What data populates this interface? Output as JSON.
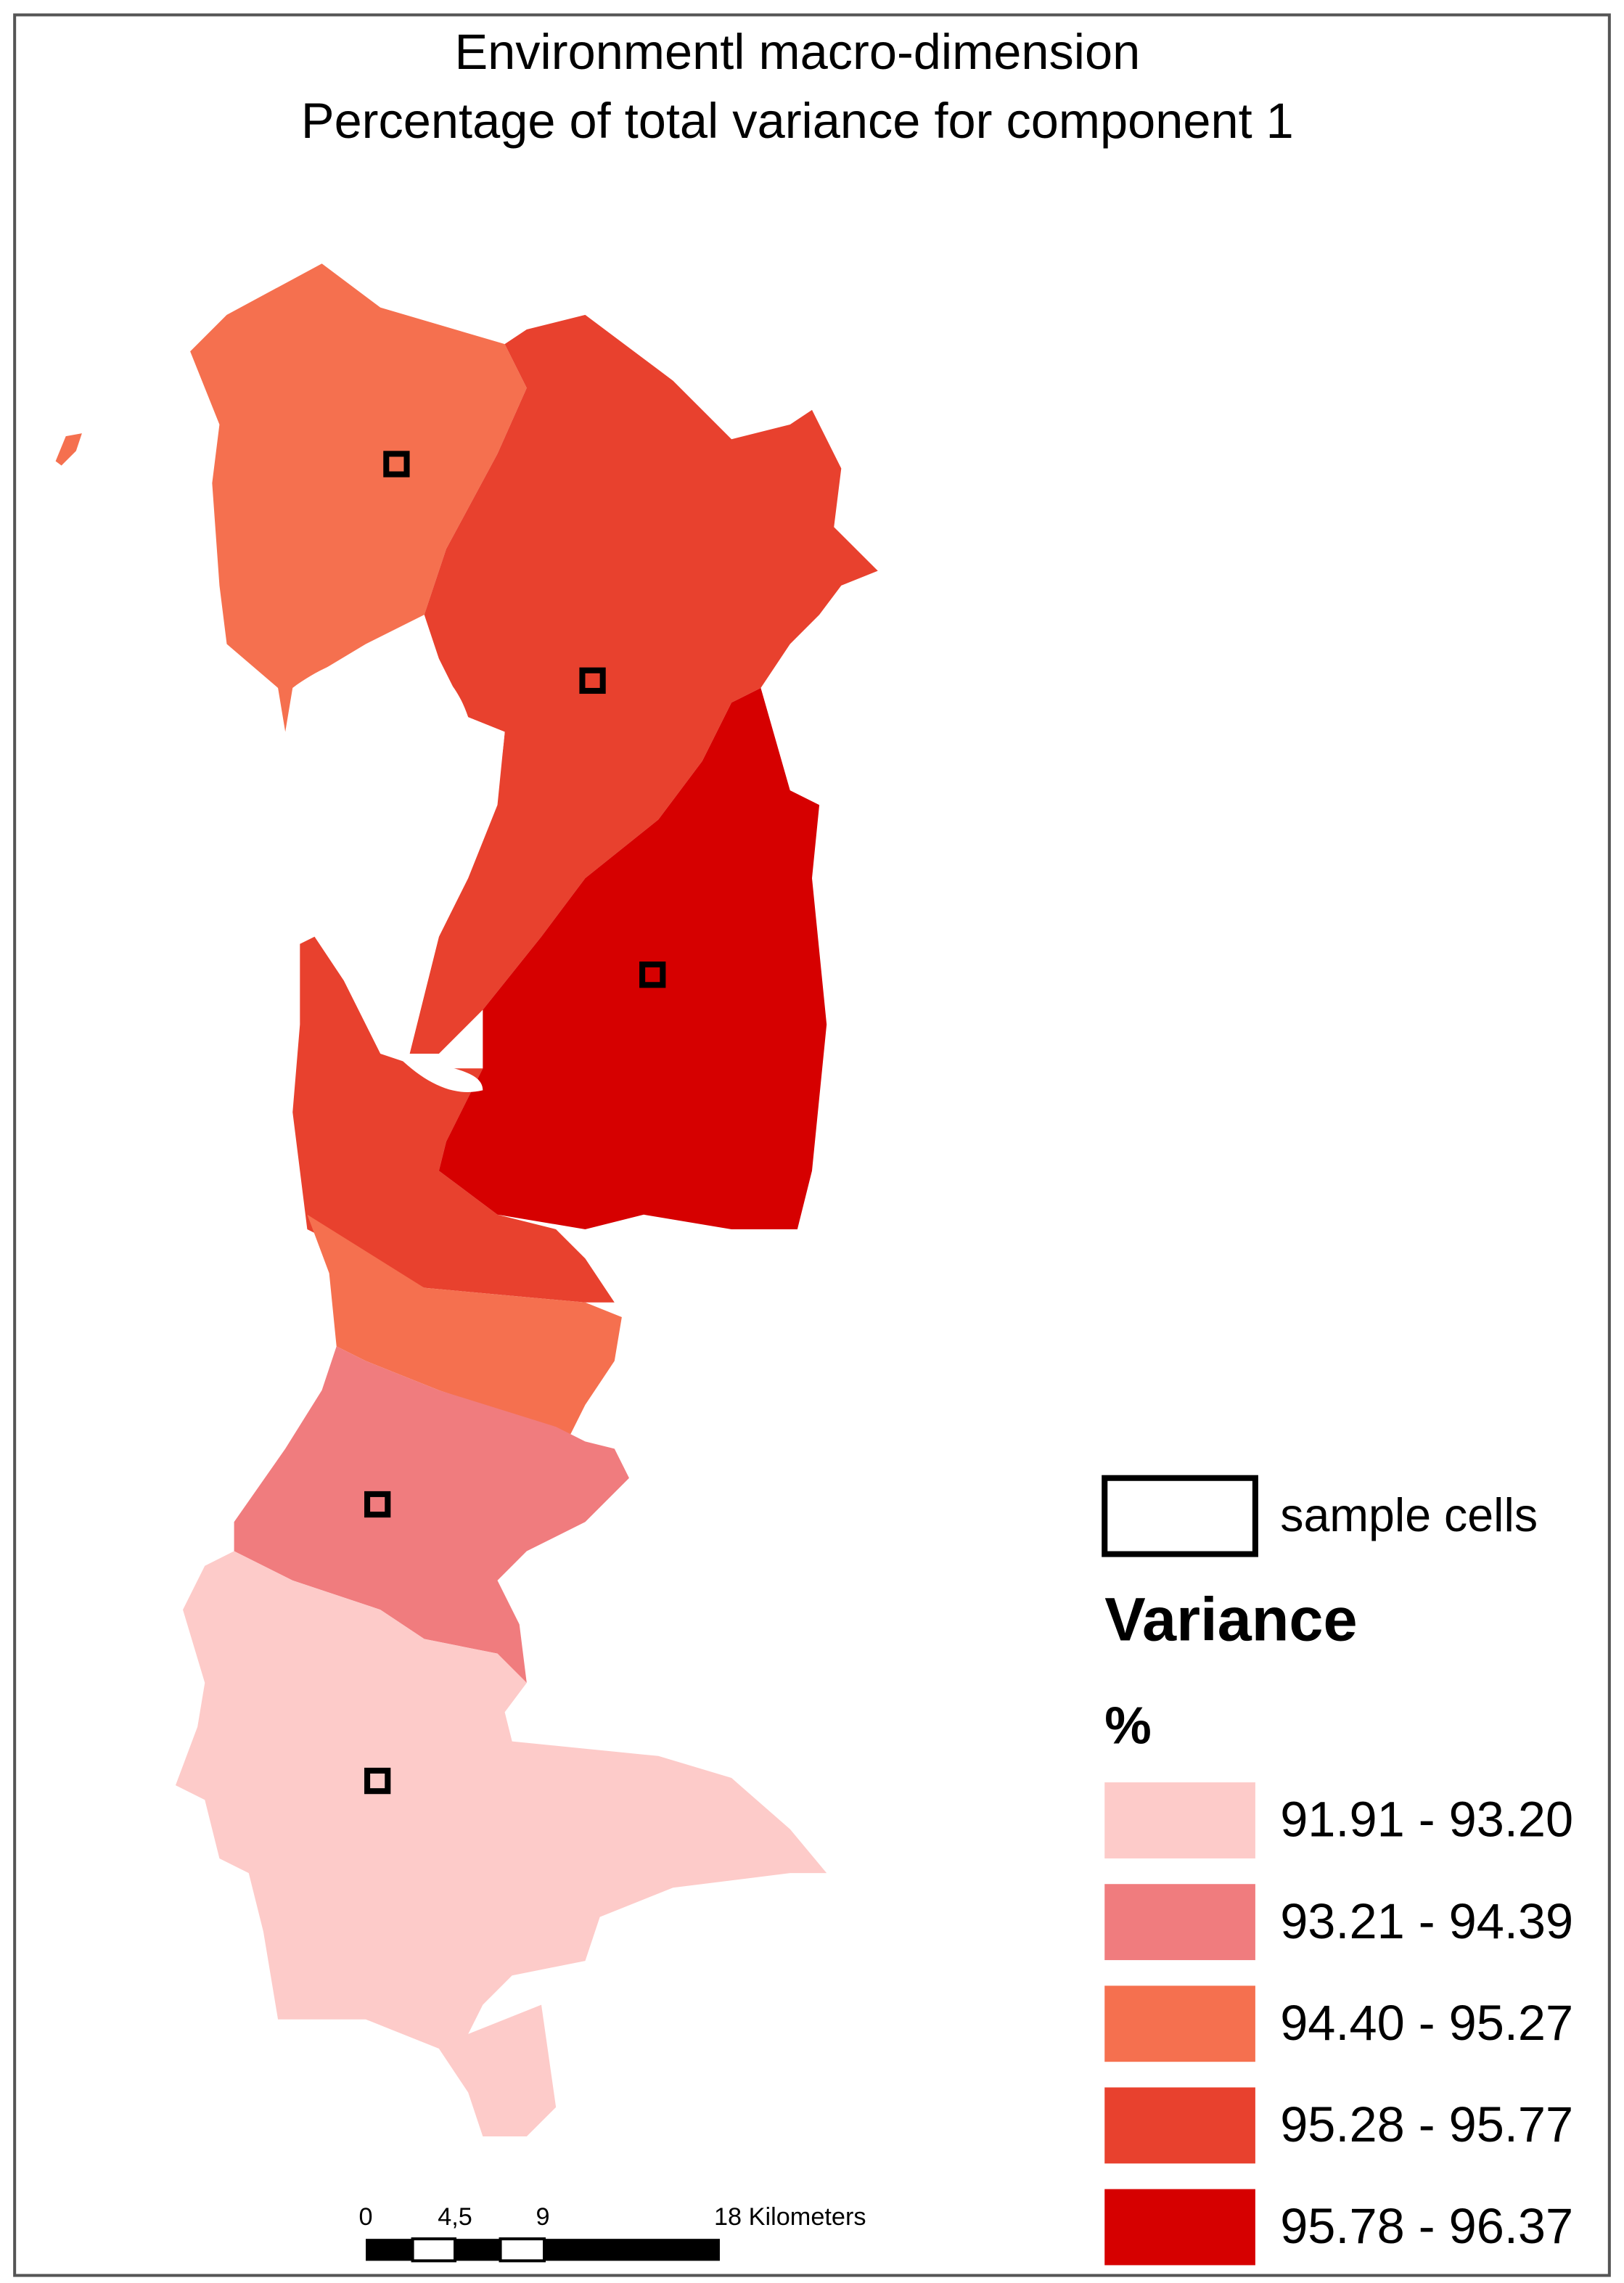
{
  "title": [
    "Environmentl macro-dimension",
    "Percentage of total variance for component 1"
  ],
  "legend": {
    "sample_label": "sample cells",
    "heading": "Variance",
    "unit": "%",
    "classes": [
      {
        "label": "91.91 - 93.20",
        "color": "#fdcbc9"
      },
      {
        "label": "93.21 - 94.39",
        "color": "#f07c7e"
      },
      {
        "label": "94.40 - 95.27",
        "color": "#f5704f"
      },
      {
        "label": "95.28 - 95.77",
        "color": "#e8412e"
      },
      {
        "label": "95.78 - 96.37",
        "color": "#d60000"
      }
    ]
  },
  "scale_bar": {
    "labels": [
      "0",
      "4,5",
      "9",
      "18 Kilometers"
    ]
  }
}
